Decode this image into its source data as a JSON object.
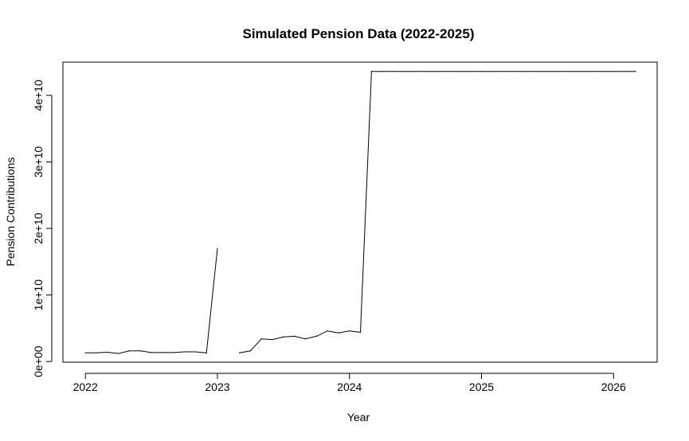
{
  "chart_data": {
    "type": "line",
    "title": "Simulated Pension Data (2022-2025)",
    "xlabel": "Year",
    "ylabel": "Pension Contributions",
    "xlim": [
      2021.83,
      2026.33
    ],
    "ylim": [
      -100000000.0,
      45000000000.0
    ],
    "x_ticks": [
      2022,
      2023,
      2024,
      2025,
      2026
    ],
    "x_tick_labels": [
      "2022",
      "2023",
      "2024",
      "2025",
      "2026"
    ],
    "y_ticks": [
      0,
      10000000000.0,
      20000000000.0,
      30000000000.0,
      40000000000.0
    ],
    "y_tick_labels": [
      "0e+00",
      "1e+10",
      "2e+10",
      "3e+10",
      "4e+10"
    ],
    "grid": false,
    "legend": "none",
    "series": [
      {
        "x": [
          2022.0,
          2022.083,
          2022.167,
          2022.25,
          2022.333,
          2022.417,
          2022.5,
          2022.583,
          2022.667,
          2022.75,
          2022.833,
          2022.917,
          2023.0,
          2023.083,
          2023.167,
          2023.25,
          2023.333,
          2023.417,
          2023.5,
          2023.583,
          2023.667,
          2023.75,
          2023.833,
          2023.917,
          2024.0,
          2024.083,
          2024.167,
          2024.25,
          2024.333,
          2024.417,
          2024.5,
          2024.583,
          2024.667,
          2024.75,
          2024.833,
          2024.917,
          2025.0,
          2025.083,
          2025.167,
          2025.25,
          2025.333,
          2025.417,
          2025.5,
          2025.583,
          2025.667,
          2025.75,
          2025.833,
          2025.917,
          2026.0,
          2026.083,
          2026.167
        ],
        "y": [
          1300000000.0,
          1300000000.0,
          1400000000.0,
          1200000000.0,
          1600000000.0,
          1600000000.0,
          1350000000.0,
          1350000000.0,
          1350000000.0,
          1450000000.0,
          1450000000.0,
          1300000000.0,
          17000000000.0,
          null,
          1300000000.0,
          1600000000.0,
          3400000000.0,
          3300000000.0,
          3700000000.0,
          3800000000.0,
          3400000000.0,
          3800000000.0,
          4600000000.0,
          4300000000.0,
          4600000000.0,
          4400000000.0,
          43600000000.0,
          43600000000.0,
          43600000000.0,
          43600000000.0,
          43600000000.0,
          43600000000.0,
          43600000000.0,
          43600000000.0,
          43600000000.0,
          43600000000.0,
          43600000000.0,
          43600000000.0,
          43600000000.0,
          43600000000.0,
          43600000000.0,
          43600000000.0,
          43600000000.0,
          43600000000.0,
          43600000000.0,
          43600000000.0,
          43600000000.0,
          43600000000.0,
          43600000000.0,
          43600000000.0,
          43600000000.0
        ],
        "color": "#000000"
      }
    ]
  }
}
